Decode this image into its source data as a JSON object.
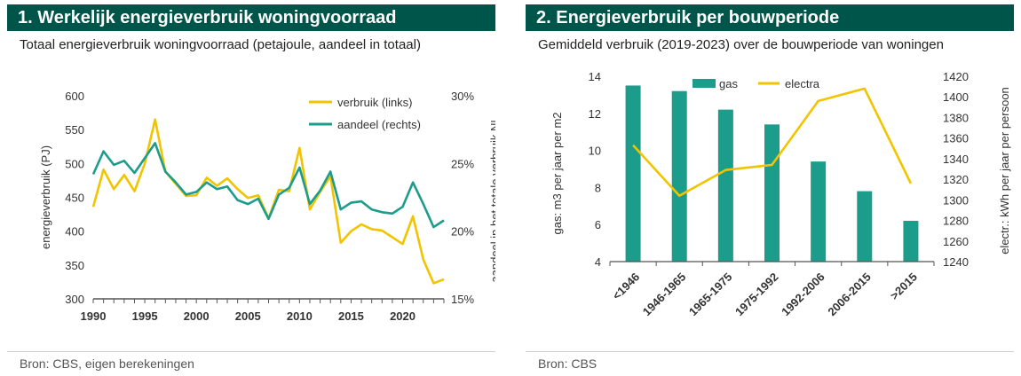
{
  "panel1": {
    "title": "1.  Werkelijk energieverbruik woningvoorraad",
    "subtitle": "Totaal energieverbruik woningvoorraad (petajoule, aandeel in totaal)",
    "source": "Bron: CBS, eigen berekeningen"
  },
  "panel2": {
    "title": "2. Energieverbruik per bouwperiode",
    "subtitle": "Gemiddeld verbruik (2019-2023) over de bouwperiode van woningen",
    "source": "Bron: CBS"
  },
  "colors": {
    "header": "#00554a",
    "yellow": "#f2c400",
    "teal": "#1c9c8b",
    "axis": "#555555"
  },
  "chart_data": [
    {
      "type": "line",
      "title": "",
      "ylabel_left": "energieverbruik (PJ)",
      "ylabel_right": "aandeel in het totale verbruik NL",
      "ylim_left": [
        300,
        600
      ],
      "yticks_left": [
        "600",
        "550",
        "500",
        "450",
        "400",
        "350",
        "300"
      ],
      "ylim_right": [
        15,
        30
      ],
      "yticks_right": [
        "30%",
        "25%",
        "20%",
        "15%"
      ],
      "xlim": [
        1990,
        2024
      ],
      "xticks": [
        "1990",
        "1995",
        "2000",
        "2005",
        "2010",
        "2015",
        "2020"
      ],
      "legend_position": "top-right",
      "series": [
        {
          "name": "verbruik (links)",
          "axis": "left",
          "color": "#f2c400",
          "x": [
            1990,
            1991,
            1992,
            1993,
            1994,
            1995,
            1996,
            1997,
            1998,
            1999,
            2000,
            2001,
            2002,
            2003,
            2004,
            2005,
            2006,
            2007,
            2008,
            2009,
            2010,
            2011,
            2012,
            2013,
            2014,
            2015,
            2016,
            2017,
            2018,
            2019,
            2020,
            2021,
            2022,
            2023,
            2024
          ],
          "values": [
            436,
            491,
            462,
            483,
            459,
            500,
            565,
            488,
            470,
            452,
            453,
            479,
            467,
            478,
            462,
            449,
            453,
            419,
            461,
            459,
            523,
            432,
            458,
            481,
            383,
            400,
            410,
            403,
            401,
            391,
            381,
            422,
            358,
            323,
            329
          ]
        },
        {
          "name": "aandeel (rechts)",
          "axis": "right",
          "color": "#1c9c8b",
          "x": [
            1990,
            1991,
            1992,
            1993,
            1994,
            1995,
            1996,
            1997,
            1998,
            1999,
            2000,
            2001,
            2002,
            2003,
            2004,
            2005,
            2006,
            2007,
            2008,
            2009,
            2010,
            2011,
            2012,
            2013,
            2014,
            2015,
            2016,
            2017,
            2018,
            2019,
            2020,
            2021,
            2022,
            2023,
            2024
          ],
          "values": [
            24.2,
            25.9,
            24.9,
            25.2,
            24.3,
            25.4,
            26.5,
            24.4,
            23.6,
            22.7,
            22.9,
            23.6,
            23.1,
            23.3,
            22.3,
            22.0,
            22.4,
            20.9,
            22.7,
            23.2,
            24.7,
            22.0,
            23.0,
            24.4,
            21.6,
            22.1,
            22.2,
            21.6,
            21.4,
            21.3,
            21.8,
            23.6,
            22.0,
            20.3,
            20.8
          ]
        }
      ]
    },
    {
      "type": "bar",
      "title": "",
      "ylabel_left": "gas: m3 per jaar per m2",
      "ylabel_right": "electr.: kWh per jaar per persoon",
      "ylim_left": [
        4,
        14
      ],
      "yticks_left": [
        "14",
        "12",
        "10",
        "8",
        "6",
        "4"
      ],
      "ylim_right": [
        1240,
        1420
      ],
      "yticks_right": [
        "1420",
        "1400",
        "1380",
        "1360",
        "1340",
        "1320",
        "1300",
        "1280",
        "1260",
        "1240"
      ],
      "categories": [
        "<1946",
        "1946-1965",
        "1965-1975",
        "1975-1992",
        "1992-2006",
        "2006-2015",
        ">2015"
      ],
      "legend_position": "top",
      "series": [
        {
          "name": "gas",
          "type": "bar",
          "axis": "left",
          "color": "#1c9c8b",
          "values": [
            13.5,
            13.2,
            12.2,
            11.4,
            9.4,
            7.8,
            6.2
          ]
        },
        {
          "name": "electra",
          "type": "line",
          "axis": "right",
          "color": "#f2c400",
          "values": [
            1353,
            1304,
            1329,
            1334,
            1396,
            1408,
            1316
          ]
        }
      ]
    }
  ]
}
